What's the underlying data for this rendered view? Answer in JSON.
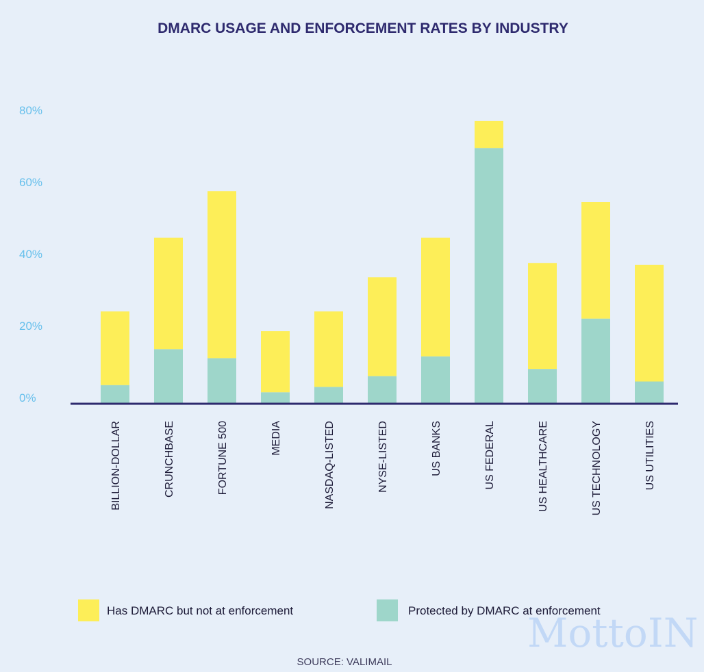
{
  "chart_data": {
    "type": "bar",
    "stacked": true,
    "title": "DMARC USAGE AND ENFORCEMENT RATES BY INDUSTRY",
    "categories": [
      "BILLION-DOLLAR",
      "CRUNCHBASE",
      "FORTUNE 500",
      "MEDIA",
      "NASDAQ-LISTED",
      "NYSE-LISTED",
      "US BANKS",
      "US FEDERAL",
      "US HEALTHCARE",
      "US TECHNOLOGY",
      "US UTILITIES"
    ],
    "series": [
      {
        "name": "Protected by DMARC at enforcement",
        "color": "#9ed6ca",
        "values": [
          5,
          15,
          12.5,
          3,
          4.5,
          7.5,
          13,
          71,
          9.5,
          23.5,
          6
        ]
      },
      {
        "name": "Has DMARC but not at enforcement",
        "color": "#fdee58",
        "values": [
          20.5,
          31,
          46.5,
          17,
          21,
          27.5,
          33,
          7.5,
          29.5,
          32.5,
          32.5
        ]
      }
    ],
    "yticks": [
      "0%",
      "20%",
      "40%",
      "60%",
      "80%"
    ],
    "ytick_values": [
      0,
      20,
      40,
      60,
      80
    ],
    "ylim": [
      0,
      80
    ],
    "legend": [
      {
        "label": "Has DMARC but not at enforcement",
        "color": "#fdee58"
      },
      {
        "label": "Protected by DMARC at enforcement",
        "color": "#9ed6ca"
      }
    ],
    "legend_position": "bottom",
    "source": "SOURCE: VALIMAIL",
    "grid": false
  },
  "watermark": "MottoIN"
}
